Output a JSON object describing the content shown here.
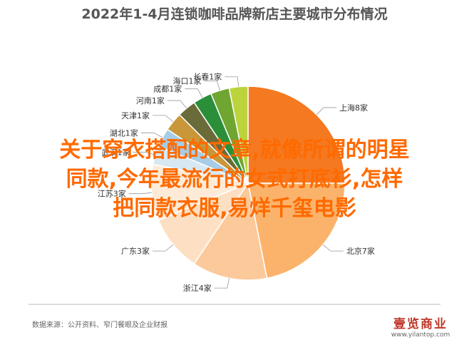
{
  "chart_data": {
    "type": "pie",
    "title": "2022年1-4月连锁咖啡品牌新店主要城市分布情况",
    "slices": [
      {
        "label": "上海8家",
        "value": 8,
        "color": "#f47920"
      },
      {
        "label": "北京7家",
        "value": 7,
        "color": "#fbb36b"
      },
      {
        "label": "浙江4家",
        "value": 4,
        "color": "#fcc99b"
      },
      {
        "label": "广东3家",
        "value": 3,
        "color": "#fde0c3"
      },
      {
        "label": "江苏3家",
        "value": 3,
        "color": "#fdebd8"
      },
      {
        "label": "武汉1家",
        "value": 1,
        "color": "#d7e8f2"
      },
      {
        "label": "湖北1家",
        "value": 1,
        "color": "#a7cde6"
      },
      {
        "label": "天津1家",
        "value": 1,
        "color": "#c7973a"
      },
      {
        "label": "河南1家",
        "value": 1,
        "color": "#6b6b3a"
      },
      {
        "label": "成都1家",
        "value": 1,
        "color": "#2b8f3a"
      },
      {
        "label": "海口1家",
        "value": 1,
        "color": "#6fa632"
      },
      {
        "label": "长春1家",
        "value": 1,
        "color": "#bcd43c"
      }
    ],
    "legend": "none"
  },
  "overlay_text": {
    "line1": "关于穿衣搭配的文章,就像所谓的明星",
    "line2": "同款,今年最流行的女式打底衫,怎样",
    "line3": "把同款衣服,易烊千玺电影"
  },
  "source": "数据来源：公开资料、窄门餐眼及企业财报",
  "logo": {
    "name": "壹览商业",
    "url": "www.yilantop.com"
  }
}
